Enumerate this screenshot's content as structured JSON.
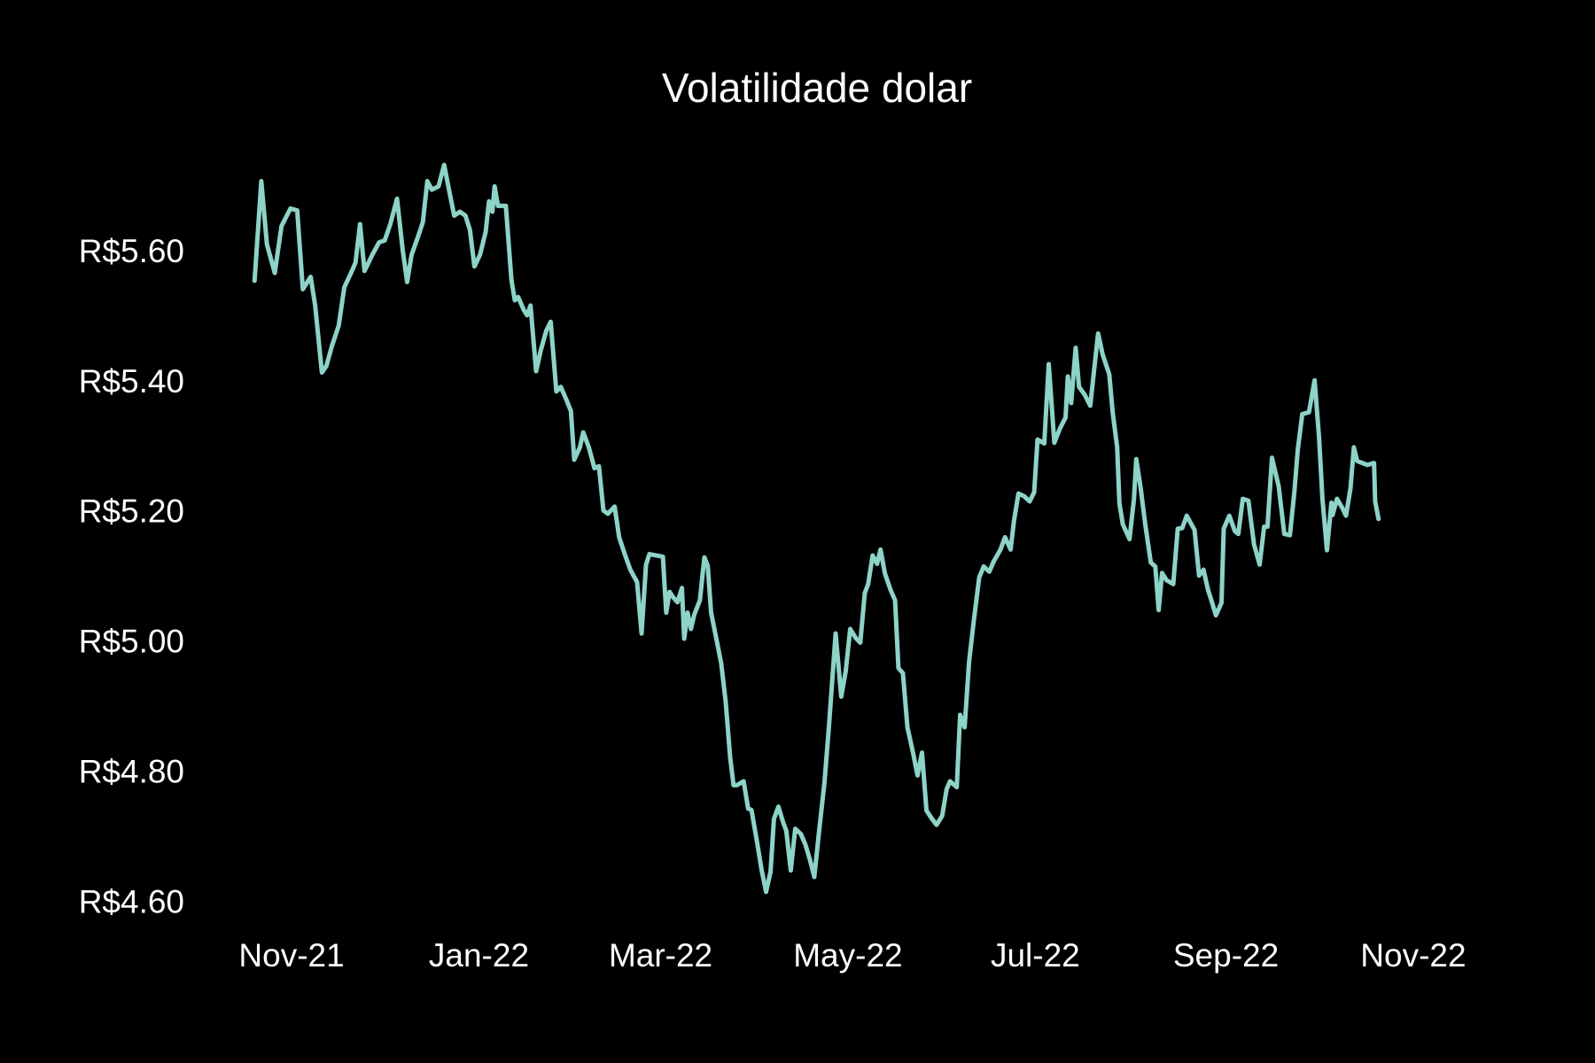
{
  "chart_data": {
    "type": "line",
    "title": "Volatilidade dolar",
    "color": "#8dd3c7",
    "x": [
      2021.8,
      2021.806,
      2021.811,
      2021.818,
      2021.824,
      2021.832,
      2021.838,
      2021.843,
      2021.85,
      2021.854,
      2021.86,
      2021.864,
      2021.869,
      2021.875,
      2021.88,
      2021.886,
      2021.89,
      2021.894,
      2021.898,
      2021.905,
      2021.911,
      2021.916,
      2021.921,
      2021.927,
      2021.932,
      2021.936,
      2021.94,
      2021.946,
      2021.95,
      2021.954,
      2021.958,
      2021.964,
      2021.969,
      2021.974,
      2021.978,
      2021.983,
      2021.988,
      2021.992,
      2021.996,
      2022.001,
      2022.006,
      2022.009,
      2022.012,
      2022.014,
      2022.017,
      2022.024,
      2022.029,
      2022.032,
      2022.035,
      2022.04,
      2022.043,
      2022.046,
      2022.051,
      2022.055,
      2022.06,
      2022.064,
      2022.069,
      2022.073,
      2022.078,
      2022.082,
      2022.085,
      2022.09,
      2022.093,
      2022.098,
      2022.103,
      2022.107,
      2022.111,
      2022.115,
      2022.121,
      2022.125,
      2022.13,
      2022.135,
      2022.141,
      2022.145,
      2022.149,
      2022.152,
      2022.164,
      2022.167,
      2022.17,
      2022.173,
      2022.177,
      2022.181,
      2022.183,
      2022.186,
      2022.189,
      2022.192,
      2022.197,
      2022.201,
      2022.204,
      2022.207,
      2022.212,
      2022.216,
      2022.22,
      2022.224,
      2022.227,
      2022.23,
      2022.236,
      2022.24,
      2022.243,
      2022.248,
      2022.252,
      2022.256,
      2022.26,
      2022.263,
      2022.267,
      2022.271,
      2022.274,
      2022.278,
      2022.282,
      2022.287,
      2022.291,
      2022.295,
      2022.299,
      2022.303,
      2022.308,
      2022.312,
      2022.318,
      2022.323,
      2022.327,
      2022.331,
      2022.336,
      2022.34,
      2022.344,
      2022.347,
      2022.351,
      2022.355,
      2022.358,
      2022.362,
      2022.367,
      2022.371,
      2022.374,
      2022.378,
      2022.382,
      2022.387,
      2022.391,
      2022.395,
      2022.399,
      2022.404,
      2022.408,
      2022.413,
      2022.417,
      2022.42,
      2022.426,
      2022.429,
      2022.433,
      2022.437,
      2022.441,
      2022.446,
      2022.45,
      2022.455,
      2022.459,
      2022.465,
      2022.469,
      2022.474,
      2022.477,
      2022.481,
      2022.486,
      2022.491,
      2022.495,
      2022.498,
      2022.504,
      2022.508,
      2022.513,
      2022.518,
      2022.523,
      2022.525,
      2022.528,
      2022.532,
      2022.535,
      2022.54,
      2022.545,
      2022.552,
      2022.556,
      2022.562,
      2022.565,
      2022.569,
      2022.571,
      2022.574,
      2022.58,
      2022.584,
      2022.586,
      2022.59,
      2022.594,
      2022.599,
      2022.603,
      2022.606,
      2022.609,
      2022.613,
      2022.619,
      2022.623,
      2022.627,
      2022.631,
      2022.638,
      2022.642,
      2022.646,
      2022.65,
      2022.653,
      2022.657,
      2022.662,
      2022.664,
      2022.669,
      2022.674,
      2022.677,
      2022.681,
      2022.686,
      2022.691,
      2022.696,
      2022.7,
      2022.703,
      2022.707,
      2022.713,
      2022.718,
      2022.723,
      2022.727,
      2022.73,
      2022.734,
      2022.74,
      2022.745,
      2022.749,
      2022.752,
      2022.756,
      2022.76,
      2022.761,
      2022.765,
      2022.77,
      2022.773,
      2022.777,
      2022.78,
      2022.783,
      2022.792,
      2022.798,
      2022.799,
      2022.802
    ],
    "values": [
      5.558,
      5.711,
      5.614,
      5.57,
      5.642,
      5.669,
      5.666,
      5.545,
      5.564,
      5.52,
      5.417,
      5.427,
      5.458,
      5.489,
      5.548,
      5.57,
      5.586,
      5.645,
      5.573,
      5.598,
      5.617,
      5.62,
      5.645,
      5.684,
      5.606,
      5.556,
      5.598,
      5.627,
      5.648,
      5.711,
      5.698,
      5.703,
      5.736,
      5.692,
      5.658,
      5.664,
      5.658,
      5.636,
      5.58,
      5.598,
      5.633,
      5.68,
      5.664,
      5.703,
      5.673,
      5.673,
      5.559,
      5.528,
      5.533,
      5.513,
      5.505,
      5.52,
      5.419,
      5.45,
      5.481,
      5.495,
      5.388,
      5.395,
      5.375,
      5.358,
      5.283,
      5.302,
      5.325,
      5.302,
      5.27,
      5.273,
      5.205,
      5.2,
      5.211,
      5.164,
      5.138,
      5.114,
      5.095,
      5.016,
      5.122,
      5.138,
      5.134,
      5.048,
      5.08,
      5.072,
      5.064,
      5.086,
      5.008,
      5.048,
      5.023,
      5.045,
      5.067,
      5.133,
      5.12,
      5.048,
      5.005,
      4.97,
      4.911,
      4.825,
      4.783,
      4.783,
      4.789,
      4.747,
      4.745,
      4.695,
      4.653,
      4.619,
      4.65,
      4.731,
      4.75,
      4.727,
      4.713,
      4.652,
      4.716,
      4.708,
      4.692,
      4.669,
      4.642,
      4.708,
      4.786,
      4.872,
      5.016,
      4.919,
      4.958,
      5.023,
      5.009,
      5.002,
      5.078,
      5.092,
      5.136,
      5.123,
      5.145,
      5.108,
      5.083,
      5.067,
      4.963,
      4.955,
      4.872,
      4.833,
      4.798,
      4.833,
      4.744,
      4.731,
      4.722,
      4.736,
      4.777,
      4.789,
      4.78,
      4.891,
      4.872,
      4.973,
      5.033,
      5.102,
      5.119,
      5.111,
      5.127,
      5.145,
      5.164,
      5.145,
      5.189,
      5.231,
      5.227,
      5.219,
      5.233,
      5.314,
      5.308,
      5.43,
      5.309,
      5.331,
      5.348,
      5.411,
      5.37,
      5.455,
      5.395,
      5.383,
      5.366,
      5.477,
      5.445,
      5.414,
      5.356,
      5.302,
      5.216,
      5.184,
      5.161,
      5.223,
      5.284,
      5.239,
      5.184,
      5.125,
      5.119,
      5.052,
      5.109,
      5.098,
      5.092,
      5.177,
      5.178,
      5.197,
      5.175,
      5.105,
      5.114,
      5.083,
      5.067,
      5.044,
      5.063,
      5.177,
      5.197,
      5.173,
      5.169,
      5.223,
      5.22,
      5.153,
      5.122,
      5.18,
      5.18,
      5.286,
      5.242,
      5.169,
      5.167,
      5.234,
      5.298,
      5.353,
      5.356,
      5.405,
      5.317,
      5.223,
      5.144,
      5.217,
      5.198,
      5.223,
      5.208,
      5.197,
      5.239,
      5.302,
      5.281,
      5.275,
      5.278,
      5.219,
      5.192
    ],
    "xlim": [
      2021.75,
      2022.852
    ],
    "xticks": [
      {
        "value": 2021.833,
        "label": "Nov-21"
      },
      {
        "value": 2022.0,
        "label": "Jan-22"
      },
      {
        "value": 2022.162,
        "label": "Mar-22"
      },
      {
        "value": 2022.329,
        "label": "May-22"
      },
      {
        "value": 2022.496,
        "label": "Jul-22"
      },
      {
        "value": 2022.666,
        "label": "Sep-22"
      },
      {
        "value": 2022.833,
        "label": "Nov-22"
      }
    ],
    "ylim": [
      4.563,
      5.792
    ],
    "yticks": [
      {
        "value": 4.6,
        "label": "R$4.60"
      },
      {
        "value": 4.8,
        "label": "R$4.80"
      },
      {
        "value": 5.0,
        "label": "R$5.00"
      },
      {
        "value": 5.2,
        "label": "R$5.20"
      },
      {
        "value": 5.4,
        "label": "R$5.40"
      },
      {
        "value": 5.6,
        "label": "R$5.60"
      }
    ]
  }
}
